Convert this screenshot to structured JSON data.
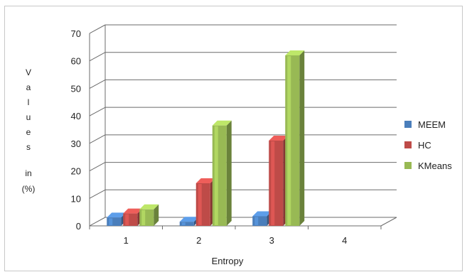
{
  "chart_data": {
    "type": "bar",
    "title": "",
    "xlabel": "Entropy",
    "ylabel": [
      "V",
      "a",
      "l",
      "u",
      "e",
      "s",
      "",
      "in",
      "(%)"
    ],
    "categories": [
      "1",
      "2",
      "3",
      "4"
    ],
    "ylim": [
      0,
      70
    ],
    "yticks": [
      "0",
      "10",
      "20",
      "30",
      "40",
      "50",
      "60",
      "70"
    ],
    "grid": true,
    "legend_position": "right",
    "series": [
      {
        "name": "MEEM",
        "color": "#4a7ebb",
        "values": [
          3,
          1.5,
          3.5,
          0
        ]
      },
      {
        "name": "HC",
        "color": "#be4b48",
        "values": [
          4.5,
          15.5,
          31,
          0
        ]
      },
      {
        "name": "KMeans",
        "color": "#98b954",
        "values": [
          6,
          36.5,
          62,
          0
        ]
      }
    ]
  }
}
